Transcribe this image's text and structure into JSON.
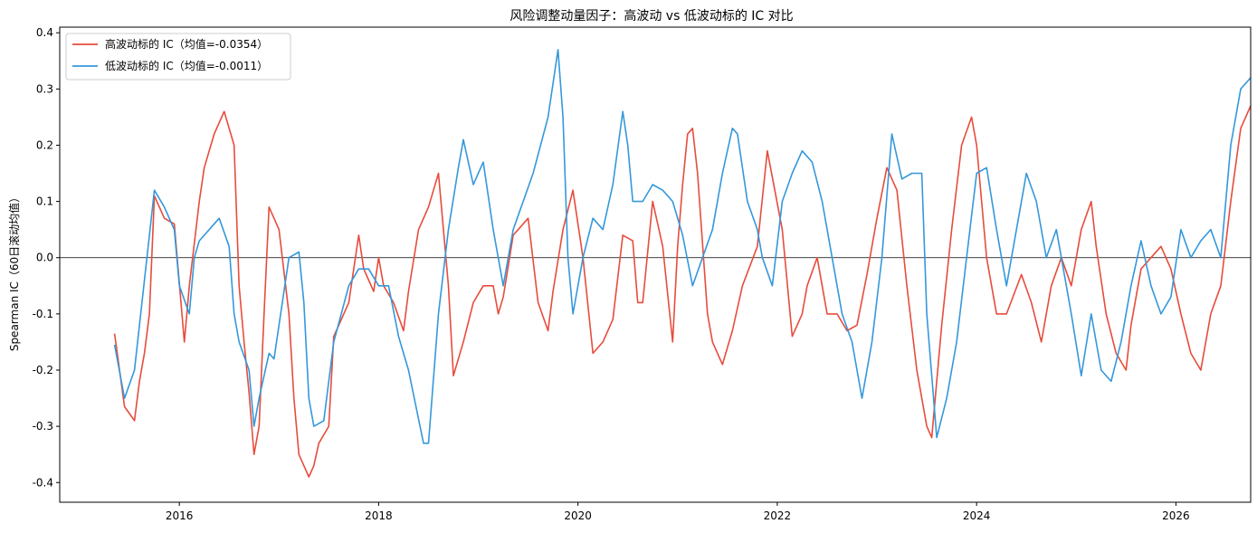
{
  "chart_data": {
    "type": "line",
    "title": "风险调整动量因子：高波动 vs 低波动标的 IC 对比",
    "xlabel": "",
    "ylabel": "Spearman IC（60日滚动均值）",
    "xlim": [
      2014.8,
      2026.75
    ],
    "ylim": [
      -0.435,
      0.41
    ],
    "xticks": [
      2016,
      2018,
      2020,
      2022,
      2024,
      2026
    ],
    "xtick_labels": [
      "2016",
      "2018",
      "2020",
      "2022",
      "2024",
      "2026"
    ],
    "yticks": [
      -0.4,
      -0.3,
      -0.2,
      -0.1,
      0.0,
      0.1,
      0.2,
      0.3,
      0.4
    ],
    "ytick_labels": [
      "-0.4",
      "-0.3",
      "-0.2",
      "-0.1",
      "0.0",
      "0.1",
      "0.2",
      "0.3",
      "0.4"
    ],
    "reference_line_y": 0.0,
    "grid": false,
    "legend_position": "upper-left",
    "series": [
      {
        "name": "高波动标的 IC（均值=-0.0354）",
        "color": "#e74c3c",
        "points": [
          [
            2015.35,
            -0.135
          ],
          [
            2015.45,
            -0.265
          ],
          [
            2015.55,
            -0.29
          ],
          [
            2015.6,
            -0.22
          ],
          [
            2015.65,
            -0.17
          ],
          [
            2015.7,
            -0.1
          ],
          [
            2015.75,
            0.11
          ],
          [
            2015.85,
            0.07
          ],
          [
            2015.95,
            0.06
          ],
          [
            2016.05,
            -0.15
          ],
          [
            2016.1,
            -0.05
          ],
          [
            2016.2,
            0.1
          ],
          [
            2016.25,
            0.16
          ],
          [
            2016.35,
            0.22
          ],
          [
            2016.45,
            0.26
          ],
          [
            2016.55,
            0.2
          ],
          [
            2016.6,
            -0.05
          ],
          [
            2016.65,
            -0.15
          ],
          [
            2016.7,
            -0.24
          ],
          [
            2016.75,
            -0.35
          ],
          [
            2016.8,
            -0.3
          ],
          [
            2016.85,
            -0.1
          ],
          [
            2016.9,
            0.09
          ],
          [
            2016.95,
            0.07
          ],
          [
            2017.0,
            0.05
          ],
          [
            2017.1,
            -0.1
          ],
          [
            2017.15,
            -0.25
          ],
          [
            2017.2,
            -0.35
          ],
          [
            2017.3,
            -0.39
          ],
          [
            2017.35,
            -0.37
          ],
          [
            2017.4,
            -0.33
          ],
          [
            2017.5,
            -0.3
          ],
          [
            2017.55,
            -0.14
          ],
          [
            2017.6,
            -0.12
          ],
          [
            2017.7,
            -0.08
          ],
          [
            2017.8,
            0.04
          ],
          [
            2017.85,
            -0.02
          ],
          [
            2017.95,
            -0.06
          ],
          [
            2018.0,
            0.0
          ],
          [
            2018.05,
            -0.05
          ],
          [
            2018.15,
            -0.08
          ],
          [
            2018.25,
            -0.13
          ],
          [
            2018.3,
            -0.06
          ],
          [
            2018.4,
            0.05
          ],
          [
            2018.5,
            0.09
          ],
          [
            2018.6,
            0.15
          ],
          [
            2018.7,
            -0.05
          ],
          [
            2018.75,
            -0.21
          ],
          [
            2018.85,
            -0.15
          ],
          [
            2018.95,
            -0.08
          ],
          [
            2019.05,
            -0.05
          ],
          [
            2019.15,
            -0.05
          ],
          [
            2019.2,
            -0.1
          ],
          [
            2019.25,
            -0.07
          ],
          [
            2019.35,
            0.04
          ],
          [
            2019.5,
            0.07
          ],
          [
            2019.6,
            -0.08
          ],
          [
            2019.7,
            -0.13
          ],
          [
            2019.75,
            -0.06
          ],
          [
            2019.85,
            0.05
          ],
          [
            2019.95,
            0.12
          ],
          [
            2020.05,
            0.0
          ],
          [
            2020.15,
            -0.17
          ],
          [
            2020.25,
            -0.15
          ],
          [
            2020.35,
            -0.11
          ],
          [
            2020.45,
            0.04
          ],
          [
            2020.55,
            0.03
          ],
          [
            2020.6,
            -0.08
          ],
          [
            2020.65,
            -0.08
          ],
          [
            2020.75,
            0.1
          ],
          [
            2020.8,
            0.06
          ],
          [
            2020.85,
            0.02
          ],
          [
            2020.95,
            -0.15
          ],
          [
            2021.0,
            0.02
          ],
          [
            2021.05,
            0.13
          ],
          [
            2021.1,
            0.22
          ],
          [
            2021.15,
            0.23
          ],
          [
            2021.2,
            0.15
          ],
          [
            2021.3,
            -0.1
          ],
          [
            2021.35,
            -0.15
          ],
          [
            2021.45,
            -0.19
          ],
          [
            2021.55,
            -0.13
          ],
          [
            2021.65,
            -0.05
          ],
          [
            2021.8,
            0.02
          ],
          [
            2021.9,
            0.19
          ],
          [
            2022.05,
            0.05
          ],
          [
            2022.15,
            -0.14
          ],
          [
            2022.25,
            -0.1
          ],
          [
            2022.3,
            -0.05
          ],
          [
            2022.4,
            0.0
          ],
          [
            2022.5,
            -0.1
          ],
          [
            2022.6,
            -0.1
          ],
          [
            2022.7,
            -0.13
          ],
          [
            2022.8,
            -0.12
          ],
          [
            2022.9,
            -0.03
          ],
          [
            2023.0,
            0.07
          ],
          [
            2023.1,
            0.16
          ],
          [
            2023.2,
            0.12
          ],
          [
            2023.3,
            -0.05
          ],
          [
            2023.4,
            -0.2
          ],
          [
            2023.5,
            -0.3
          ],
          [
            2023.55,
            -0.32
          ],
          [
            2023.65,
            -0.12
          ],
          [
            2023.75,
            0.05
          ],
          [
            2023.85,
            0.2
          ],
          [
            2023.95,
            0.25
          ],
          [
            2024.0,
            0.2
          ],
          [
            2024.1,
            0.0
          ],
          [
            2024.2,
            -0.1
          ],
          [
            2024.3,
            -0.1
          ],
          [
            2024.45,
            -0.03
          ],
          [
            2024.55,
            -0.08
          ],
          [
            2024.65,
            -0.15
          ],
          [
            2024.75,
            -0.05
          ],
          [
            2024.85,
            0.0
          ],
          [
            2024.95,
            -0.05
          ],
          [
            2025.05,
            0.05
          ],
          [
            2025.15,
            0.1
          ],
          [
            2025.2,
            0.02
          ],
          [
            2025.3,
            -0.1
          ],
          [
            2025.4,
            -0.17
          ],
          [
            2025.5,
            -0.2
          ],
          [
            2025.55,
            -0.12
          ],
          [
            2025.65,
            -0.02
          ],
          [
            2025.75,
            0.0
          ],
          [
            2025.85,
            0.02
          ],
          [
            2025.95,
            -0.02
          ],
          [
            2026.05,
            -0.1
          ],
          [
            2026.15,
            -0.17
          ],
          [
            2026.25,
            -0.2
          ],
          [
            2026.3,
            -0.15
          ],
          [
            2026.35,
            -0.1
          ],
          [
            2026.45,
            -0.05
          ],
          [
            2026.55,
            0.1
          ],
          [
            2026.65,
            0.23
          ],
          [
            2026.75,
            0.27
          ]
        ]
      },
      {
        "name": "低波动标的 IC（均值=-0.0011）",
        "color": "#3498db",
        "points": [
          [
            2015.35,
            -0.155
          ],
          [
            2015.45,
            -0.25
          ],
          [
            2015.55,
            -0.2
          ],
          [
            2015.6,
            -0.12
          ],
          [
            2015.65,
            -0.04
          ],
          [
            2015.75,
            0.12
          ],
          [
            2015.85,
            0.09
          ],
          [
            2015.95,
            0.05
          ],
          [
            2016.0,
            -0.05
          ],
          [
            2016.1,
            -0.1
          ],
          [
            2016.15,
            0.0
          ],
          [
            2016.2,
            0.03
          ],
          [
            2016.3,
            0.05
          ],
          [
            2016.4,
            0.07
          ],
          [
            2016.5,
            0.02
          ],
          [
            2016.55,
            -0.1
          ],
          [
            2016.6,
            -0.15
          ],
          [
            2016.7,
            -0.2
          ],
          [
            2016.75,
            -0.3
          ],
          [
            2016.8,
            -0.25
          ],
          [
            2016.9,
            -0.17
          ],
          [
            2016.95,
            -0.18
          ],
          [
            2017.0,
            -0.12
          ],
          [
            2017.1,
            0.0
          ],
          [
            2017.2,
            0.01
          ],
          [
            2017.25,
            -0.08
          ],
          [
            2017.3,
            -0.25
          ],
          [
            2017.35,
            -0.3
          ],
          [
            2017.45,
            -0.29
          ],
          [
            2017.55,
            -0.15
          ],
          [
            2017.7,
            -0.05
          ],
          [
            2017.8,
            -0.02
          ],
          [
            2017.9,
            -0.02
          ],
          [
            2018.0,
            -0.05
          ],
          [
            2018.1,
            -0.05
          ],
          [
            2018.2,
            -0.14
          ],
          [
            2018.3,
            -0.2
          ],
          [
            2018.45,
            -0.33
          ],
          [
            2018.5,
            -0.33
          ],
          [
            2018.6,
            -0.1
          ],
          [
            2018.7,
            0.05
          ],
          [
            2018.8,
            0.16
          ],
          [
            2018.85,
            0.21
          ],
          [
            2018.95,
            0.13
          ],
          [
            2019.05,
            0.17
          ],
          [
            2019.15,
            0.05
          ],
          [
            2019.25,
            -0.05
          ],
          [
            2019.35,
            0.05
          ],
          [
            2019.45,
            0.1
          ],
          [
            2019.55,
            0.15
          ],
          [
            2019.7,
            0.25
          ],
          [
            2019.8,
            0.37
          ],
          [
            2019.85,
            0.25
          ],
          [
            2019.9,
            0.0
          ],
          [
            2019.95,
            -0.1
          ],
          [
            2020.05,
            0.0
          ],
          [
            2020.15,
            0.07
          ],
          [
            2020.25,
            0.05
          ],
          [
            2020.35,
            0.13
          ],
          [
            2020.45,
            0.26
          ],
          [
            2020.5,
            0.2
          ],
          [
            2020.55,
            0.1
          ],
          [
            2020.65,
            0.1
          ],
          [
            2020.75,
            0.13
          ],
          [
            2020.85,
            0.12
          ],
          [
            2020.95,
            0.1
          ],
          [
            2021.05,
            0.04
          ],
          [
            2021.15,
            -0.05
          ],
          [
            2021.25,
            0.0
          ],
          [
            2021.35,
            0.05
          ],
          [
            2021.45,
            0.15
          ],
          [
            2021.55,
            0.23
          ],
          [
            2021.6,
            0.22
          ],
          [
            2021.7,
            0.1
          ],
          [
            2021.8,
            0.05
          ],
          [
            2021.85,
            0.0
          ],
          [
            2021.95,
            -0.05
          ],
          [
            2022.05,
            0.1
          ],
          [
            2022.15,
            0.15
          ],
          [
            2022.25,
            0.19
          ],
          [
            2022.35,
            0.17
          ],
          [
            2022.45,
            0.1
          ],
          [
            2022.55,
            0.0
          ],
          [
            2022.65,
            -0.1
          ],
          [
            2022.75,
            -0.15
          ],
          [
            2022.85,
            -0.25
          ],
          [
            2022.95,
            -0.15
          ],
          [
            2023.05,
            0.0
          ],
          [
            2023.15,
            0.22
          ],
          [
            2023.25,
            0.14
          ],
          [
            2023.35,
            0.15
          ],
          [
            2023.45,
            0.15
          ],
          [
            2023.5,
            -0.1
          ],
          [
            2023.6,
            -0.32
          ],
          [
            2023.7,
            -0.25
          ],
          [
            2023.8,
            -0.15
          ],
          [
            2023.9,
            0.0
          ],
          [
            2024.0,
            0.15
          ],
          [
            2024.1,
            0.16
          ],
          [
            2024.2,
            0.05
          ],
          [
            2024.3,
            -0.05
          ],
          [
            2024.4,
            0.05
          ],
          [
            2024.5,
            0.15
          ],
          [
            2024.6,
            0.1
          ],
          [
            2024.7,
            0.0
          ],
          [
            2024.8,
            0.05
          ],
          [
            2024.85,
            0.0
          ],
          [
            2024.95,
            -0.1
          ],
          [
            2025.05,
            -0.21
          ],
          [
            2025.15,
            -0.1
          ],
          [
            2025.25,
            -0.2
          ],
          [
            2025.35,
            -0.22
          ],
          [
            2025.45,
            -0.15
          ],
          [
            2025.55,
            -0.05
          ],
          [
            2025.65,
            0.03
          ],
          [
            2025.75,
            -0.05
          ],
          [
            2025.85,
            -0.1
          ],
          [
            2025.95,
            -0.07
          ],
          [
            2026.05,
            0.05
          ],
          [
            2026.15,
            0.0
          ],
          [
            2026.25,
            0.03
          ],
          [
            2026.35,
            0.05
          ],
          [
            2026.45,
            0.0
          ],
          [
            2026.55,
            0.2
          ],
          [
            2026.65,
            0.3
          ],
          [
            2026.75,
            0.32
          ]
        ]
      }
    ]
  }
}
